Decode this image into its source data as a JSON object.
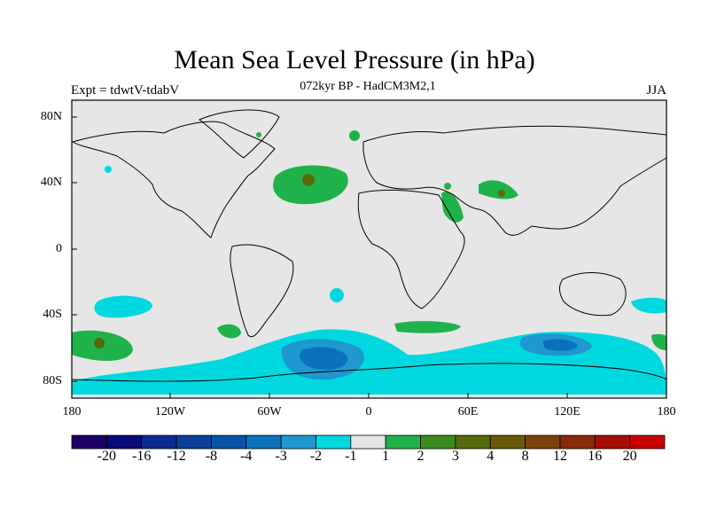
{
  "title": "Mean Sea Level Pressure (in hPa)",
  "subtitle": "072kyr BP - HadCM3M2,1",
  "left_label": "Expt = tdwtV-tdabV",
  "right_label": "JJA",
  "map": {
    "background_color": "#e6e6e6",
    "lat_labels": [
      "80N",
      "40N",
      "0",
      "40S",
      "80S"
    ],
    "lon_labels": [
      "180",
      "120W",
      "60W",
      "0",
      "60E",
      "120E",
      "180"
    ]
  },
  "colorbar": {
    "colors": [
      "#1c0066",
      "#0a0a7a",
      "#0b2a8f",
      "#0a4099",
      "#0653a8",
      "#0a72bd",
      "#1f97cf",
      "#00d8e0",
      "#e6e6e6",
      "#20b24a",
      "#3c8c1e",
      "#566b0c",
      "#6a5a08",
      "#7a420a",
      "#8a2a08",
      "#a80e08",
      "#c80000"
    ],
    "labels": [
      "-20",
      "-16",
      "-12",
      "-8",
      "-4",
      "-3",
      "-2",
      "-1",
      "1",
      "2",
      "3",
      "4",
      "8",
      "12",
      "16",
      "20"
    ]
  }
}
